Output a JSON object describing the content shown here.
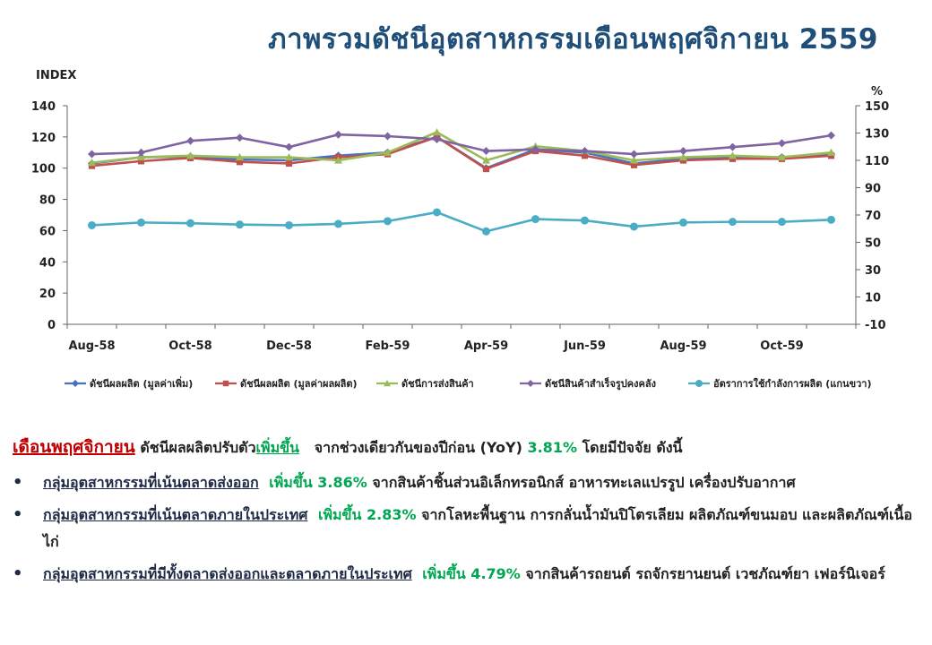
{
  "title": "ภาพรวมดัชนีอุตสาหกรรมเดือนพฤศจิกายน  2559",
  "chart_data": {
    "type": "line",
    "ylabel_left": "INDEX",
    "ylabel_right": "%",
    "ylim_left": [
      0,
      140
    ],
    "yticks_left": [
      0,
      20,
      40,
      60,
      80,
      100,
      120,
      140
    ],
    "ylim_right": [
      -10,
      150
    ],
    "yticks_right": [
      -10,
      10,
      30,
      50,
      70,
      90,
      110,
      130,
      150
    ],
    "x": [
      "Aug-58",
      "Sep-58",
      "Oct-58",
      "Nov-58",
      "Dec-58",
      "Jan-59",
      "Feb-59",
      "Mar-59",
      "Apr-59",
      "May-59",
      "Jun-59",
      "Jul-59",
      "Aug-59",
      "Sep-59",
      "Oct-59",
      "Nov-59"
    ],
    "x_tick_labels": [
      "Aug-58",
      "Oct-58",
      "Dec-58",
      "Feb-59",
      "Apr-59",
      "Jun-59",
      "Aug-59",
      "Oct-59"
    ],
    "legend_position": "bottom",
    "series": [
      {
        "name": "ดัชนีผลผลิต (มูลค่าเพิ่ม)",
        "axis": "left",
        "color": "#4472c4",
        "marker": "diamond",
        "values": [
          103,
          107,
          107.5,
          105.5,
          105,
          108,
          110,
          120,
          100,
          112,
          110,
          103,
          106,
          107,
          107,
          109
        ]
      },
      {
        "name": "ดัชนีผลผลิต (มูลค่าผลผลิต)",
        "axis": "left",
        "color": "#c0504d",
        "marker": "square",
        "values": [
          101.5,
          104.5,
          106.5,
          104,
          103,
          107,
          109,
          120,
          99.5,
          111,
          108,
          102,
          105,
          106,
          106,
          108
        ]
      },
      {
        "name": "ดัชนีการส่งสินค้า",
        "axis": "left",
        "color": "#9bbb59",
        "marker": "triangle",
        "values": [
          103.5,
          107,
          108,
          107,
          107,
          105,
          110,
          123,
          105,
          114,
          111,
          105,
          107,
          108,
          107,
          110
        ]
      },
      {
        "name": "ดัชนีสินค้าสำเร็จรูปคงคลัง",
        "axis": "left",
        "color": "#8064a2",
        "marker": "diamond",
        "values": [
          109,
          110,
          117.5,
          119.5,
          113.5,
          121.5,
          120.5,
          118.5,
          111,
          112,
          111,
          109,
          111,
          113.5,
          116,
          121
        ]
      },
      {
        "name": "อัตราการใช้กำลังการผลิต (แกนขวา)",
        "axis": "right",
        "color": "#4bacc6",
        "marker": "circle",
        "values": [
          62.5,
          64.5,
          64,
          63,
          62.5,
          63.5,
          65.5,
          72,
          58,
          67,
          66,
          61.5,
          64.5,
          65,
          65,
          66.5
        ]
      }
    ]
  },
  "summary": {
    "month": "เดือนพฤศจิกายน",
    "headline_a": "ดัชนีผลผลิตปรับตัว",
    "headline_rise": "เพิ่มขึ้น",
    "headline_b": "จากช่วงเดียวกันของปีก่อน (YoY)",
    "headline_pct": "3.81%",
    "headline_c": "โดยมีปัจจัย  ดังนี้",
    "bullets": [
      {
        "group": "กลุ่มอุตสาหกรรมที่เน้นตลาดส่งออก",
        "change": "เพิ่มขึ้น 3.86%",
        "detail": "จากสินค้าชิ้นส่วนอิเล็กทรอนิกส์ อาหารทะเลแปรรูป เครื่องปรับอากาศ"
      },
      {
        "group": "กลุ่มอุตสาหกรรมที่เน้นตลาดภายในประเทศ",
        "change": "เพิ่มขึ้น 2.83%",
        "detail": "จากโลหะพื้นฐาน การกลั่นน้ำมันปิโตรเลียม ผลิตภัณฑ์ขนมอบ และผลิตภัณฑ์เนื้อไก่"
      },
      {
        "group": "กลุ่มอุตสาหกรรมที่มีทั้งตลาดส่งออกและตลาดภายในประเทศ",
        "change": "เพิ่มขึ้น 4.79%",
        "detail": "จากสินค้ารถยนต์ รถจักรยานยนต์ เวชภัณฑ์ยา เฟอร์นิเจอร์"
      }
    ]
  }
}
